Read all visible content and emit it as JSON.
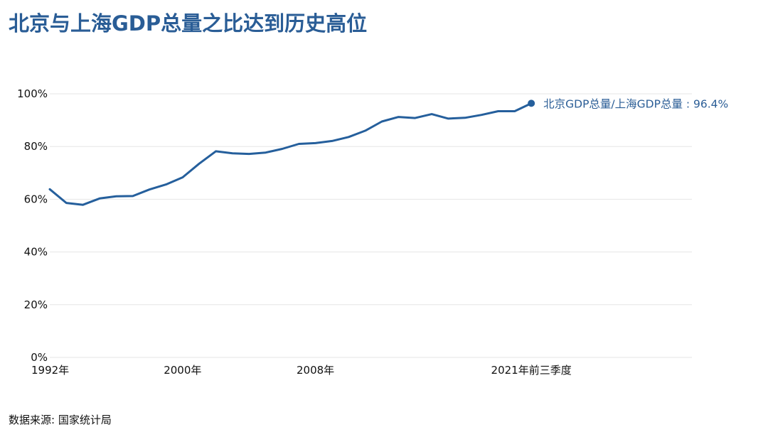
{
  "title": "北京与上海GDP总量之比达到历史高位",
  "source": "数据来源: 国家统计局",
  "colors": {
    "line": "#255f9c",
    "title": "#2a5d96",
    "grid": "#e6e6e6"
  },
  "chart_data": {
    "type": "line",
    "title": "北京与上海GDP总量之比达到历史高位",
    "xlabel": "",
    "ylabel": "",
    "ylim": [
      0,
      100
    ],
    "y_ticks": [
      "0%",
      "20%",
      "40%",
      "60%",
      "80%",
      "100%"
    ],
    "y_tick_values": [
      0,
      20,
      40,
      60,
      80,
      100
    ],
    "x_ticks": [
      {
        "x": "1992",
        "label": "1992年"
      },
      {
        "x": "2000",
        "label": "2000年"
      },
      {
        "x": "2008",
        "label": "2008年"
      },
      {
        "x": "2021Q3",
        "label": "2021年前三季度"
      }
    ],
    "grid": true,
    "series": [
      {
        "name": "北京GDP总量/上海GDP总量",
        "x": [
          "1992",
          "1993",
          "1994",
          "1995",
          "1996",
          "1997",
          "1998",
          "1999",
          "2000",
          "2001",
          "2002",
          "2003",
          "2004",
          "2005",
          "2006",
          "2007",
          "2008",
          "2009",
          "2010",
          "2011",
          "2012",
          "2013",
          "2014",
          "2015",
          "2016",
          "2017",
          "2018",
          "2019",
          "2020",
          "2021Q3"
        ],
        "values": [
          63.8,
          58.6,
          57.9,
          60.3,
          61.1,
          61.2,
          63.7,
          65.6,
          68.3,
          73.5,
          78.2,
          77.4,
          77.2,
          77.7,
          79.1,
          81.0,
          81.3,
          82.1,
          83.6,
          86.0,
          89.5,
          91.2,
          90.8,
          92.3,
          90.6,
          90.9,
          92.0,
          93.4,
          93.4,
          96.4
        ]
      }
    ],
    "end_label": "北京GDP总量/上海GDP总量 : 96.4%"
  }
}
